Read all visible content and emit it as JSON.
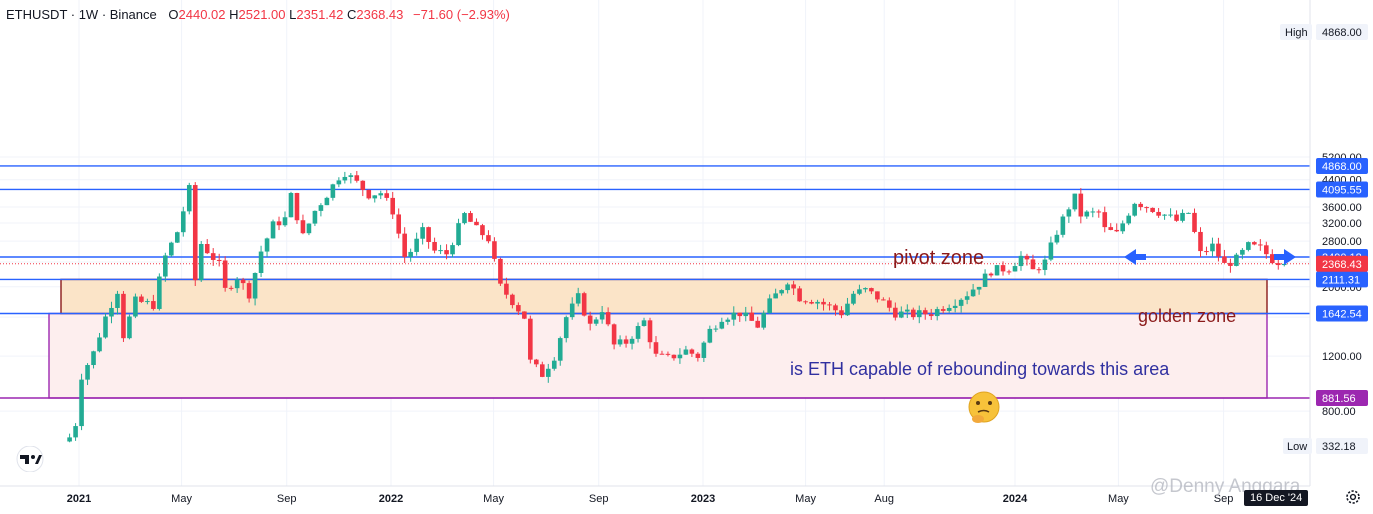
{
  "header": {
    "symbol": "ETHUSDT · 1W · Binance",
    "o_label": "O",
    "o_value": "2440.02",
    "h_label": "H",
    "h_value": "2521.00",
    "l_label": "L",
    "l_value": "2351.42",
    "c_label": "C",
    "c_value": "2368.43",
    "change": "−71.60 (−2.93%)"
  },
  "axis_badges": {
    "high_label": "High",
    "high_value": "4868.00",
    "low_label": "Low",
    "low_value": "332.18"
  },
  "date_badge": "16 Dec '24",
  "watermark": "@Denny Anggara",
  "colors": {
    "up": "#22ab94",
    "down": "#f23645",
    "line": "#2962ff",
    "golden_zone_fill": "#fbe4c8",
    "golden_zone_border": "#8b1a1a",
    "rebound_fill": "#fdeeee",
    "rebound_border": "#9c27b0",
    "annot_red": "#8b1a1a",
    "annot_blue": "#3030a0"
  },
  "chart_data": {
    "type": "candlestick",
    "title": "",
    "xlabel": "",
    "ylabel": "",
    "y_scale": "log",
    "ylim": [
      250,
      5600
    ],
    "x_ticks": [
      "2021",
      "May",
      "Sep",
      "2022",
      "May",
      "Sep",
      "2023",
      "May",
      "Aug",
      "2024",
      "May",
      "Sep"
    ],
    "y_ticks": [
      5200,
      4400,
      3600,
      3200,
      2800,
      2400,
      2000,
      1600,
      1200,
      800
    ],
    "y_tick_labels": [
      "5200.00",
      "4400.00",
      "3600.00",
      "3200.00",
      "2800.00",
      "2400.00",
      "2000.00",
      "1600.00",
      "1200.00",
      "800.00"
    ],
    "horizontal_levels": [
      {
        "value": 4868.0,
        "label": "4868.00"
      },
      {
        "value": 4095.55,
        "label": "4095.55"
      },
      {
        "value": 2490.18,
        "label": "2490.18"
      },
      {
        "value": 2111.31,
        "label": "2111.31"
      },
      {
        "value": 1642.54,
        "label": "1642.54"
      },
      {
        "value": 881.56,
        "label": "881.56"
      }
    ],
    "last_price": {
      "value": 2368.43,
      "label": "2368.43"
    },
    "zones": [
      {
        "name": "golden zone",
        "low": 1642.54,
        "high": 2111.31
      },
      {
        "name": "rebound area",
        "low": 881.56,
        "high": 1642.54
      }
    ],
    "annotations": [
      "pivot zone",
      "golden zone",
      "is ETH capable of rebounding towards this area"
    ],
    "price_path": [
      [
        "2020-12-14",
        640
      ],
      [
        "2020-12-21",
        660
      ],
      [
        "2020-12-28",
        730
      ],
      [
        "2021-01-04",
        1040
      ],
      [
        "2021-01-18",
        1230
      ],
      [
        "2021-02-01",
        1600
      ],
      [
        "2021-02-15",
        1950
      ],
      [
        "2021-02-22",
        1400
      ],
      [
        "2021-03-08",
        1800
      ],
      [
        "2021-03-29",
        1750
      ],
      [
        "2021-04-05",
        2100
      ],
      [
        "2021-04-12",
        2500
      ],
      [
        "2021-04-26",
        3000
      ],
      [
        "2021-05-10",
        4100
      ],
      [
        "2021-05-17",
        2100
      ],
      [
        "2021-05-24",
        2750
      ],
      [
        "2021-06-14",
        2350
      ],
      [
        "2021-06-21",
        1950
      ],
      [
        "2021-07-05",
        2150
      ],
      [
        "2021-07-19",
        1900
      ],
      [
        "2021-08-02",
        2600
      ],
      [
        "2021-08-16",
        3150
      ],
      [
        "2021-08-30",
        3300
      ],
      [
        "2021-09-06",
        3900
      ],
      [
        "2021-09-20",
        2900
      ],
      [
        "2021-10-04",
        3500
      ],
      [
        "2021-10-18",
        3950
      ],
      [
        "2021-11-01",
        4500
      ],
      [
        "2021-11-08",
        4650
      ],
      [
        "2021-11-22",
        4300
      ],
      [
        "2021-12-06",
        3950
      ],
      [
        "2021-12-20",
        4000
      ],
      [
        "2022-01-03",
        3500
      ],
      [
        "2022-01-17",
        2500
      ],
      [
        "2022-01-24",
        2600
      ],
      [
        "2022-02-07",
        3000
      ],
      [
        "2022-02-21",
        2600
      ],
      [
        "2022-03-07",
        2550
      ],
      [
        "2022-03-28",
        3400
      ],
      [
        "2022-04-11",
        3050
      ],
      [
        "2022-04-25",
        2850
      ],
      [
        "2022-05-09",
        2000
      ],
      [
        "2022-05-23",
        1800
      ],
      [
        "2022-06-06",
        1600
      ],
      [
        "2022-06-13",
        1150
      ],
      [
        "2022-06-27",
        1050
      ],
      [
        "2022-07-11",
        1200
      ],
      [
        "2022-07-25",
        1600
      ],
      [
        "2022-08-08",
        1850
      ],
      [
        "2022-08-22",
        1500
      ],
      [
        "2022-09-05",
        1700
      ],
      [
        "2022-09-19",
        1300
      ],
      [
        "2022-10-03",
        1330
      ],
      [
        "2022-10-24",
        1550
      ],
      [
        "2022-11-07",
        1200
      ],
      [
        "2022-11-21",
        1180
      ],
      [
        "2022-12-12",
        1250
      ],
      [
        "2022-12-26",
        1200
      ],
      [
        "2023-01-09",
        1450
      ],
      [
        "2023-01-23",
        1600
      ],
      [
        "2023-02-13",
        1650
      ],
      [
        "2023-03-06",
        1500
      ],
      [
        "2023-03-20",
        1780
      ],
      [
        "2023-04-10",
        2100
      ],
      [
        "2023-04-24",
        1850
      ],
      [
        "2023-05-15",
        1800
      ],
      [
        "2023-06-12",
        1650
      ],
      [
        "2023-06-26",
        1900
      ],
      [
        "2023-07-10",
        1950
      ],
      [
        "2023-07-24",
        1850
      ],
      [
        "2023-08-14",
        1650
      ],
      [
        "2023-09-04",
        1630
      ],
      [
        "2023-09-25",
        1650
      ],
      [
        "2023-10-23",
        1800
      ],
      [
        "2023-11-06",
        1900
      ],
      [
        "2023-11-20",
        2050
      ],
      [
        "2023-12-04",
        2250
      ],
      [
        "2023-12-25",
        2300
      ],
      [
        "2024-01-08",
        2500
      ],
      [
        "2024-01-22",
        2250
      ],
      [
        "2024-02-05",
        2400
      ],
      [
        "2024-02-19",
        3000
      ],
      [
        "2024-03-04",
        3600
      ],
      [
        "2024-03-11",
        3850
      ],
      [
        "2024-03-18",
        3400
      ],
      [
        "2024-04-08",
        3450
      ],
      [
        "2024-04-15",
        3050
      ],
      [
        "2024-04-29",
        2950
      ],
      [
        "2024-05-20",
        3750
      ],
      [
        "2024-06-10",
        3550
      ],
      [
        "2024-06-24",
        3400
      ],
      [
        "2024-07-08",
        3250
      ],
      [
        "2024-07-22",
        3450
      ],
      [
        "2024-08-05",
        2550
      ],
      [
        "2024-08-19",
        2700
      ],
      [
        "2024-09-02",
        2350
      ],
      [
        "2024-09-16",
        2450
      ],
      [
        "2024-09-30",
        2700
      ],
      [
        "2024-10-14",
        2650
      ],
      [
        "2024-10-28",
        2450
      ],
      [
        "2024-11-11",
        2368
      ]
    ]
  }
}
